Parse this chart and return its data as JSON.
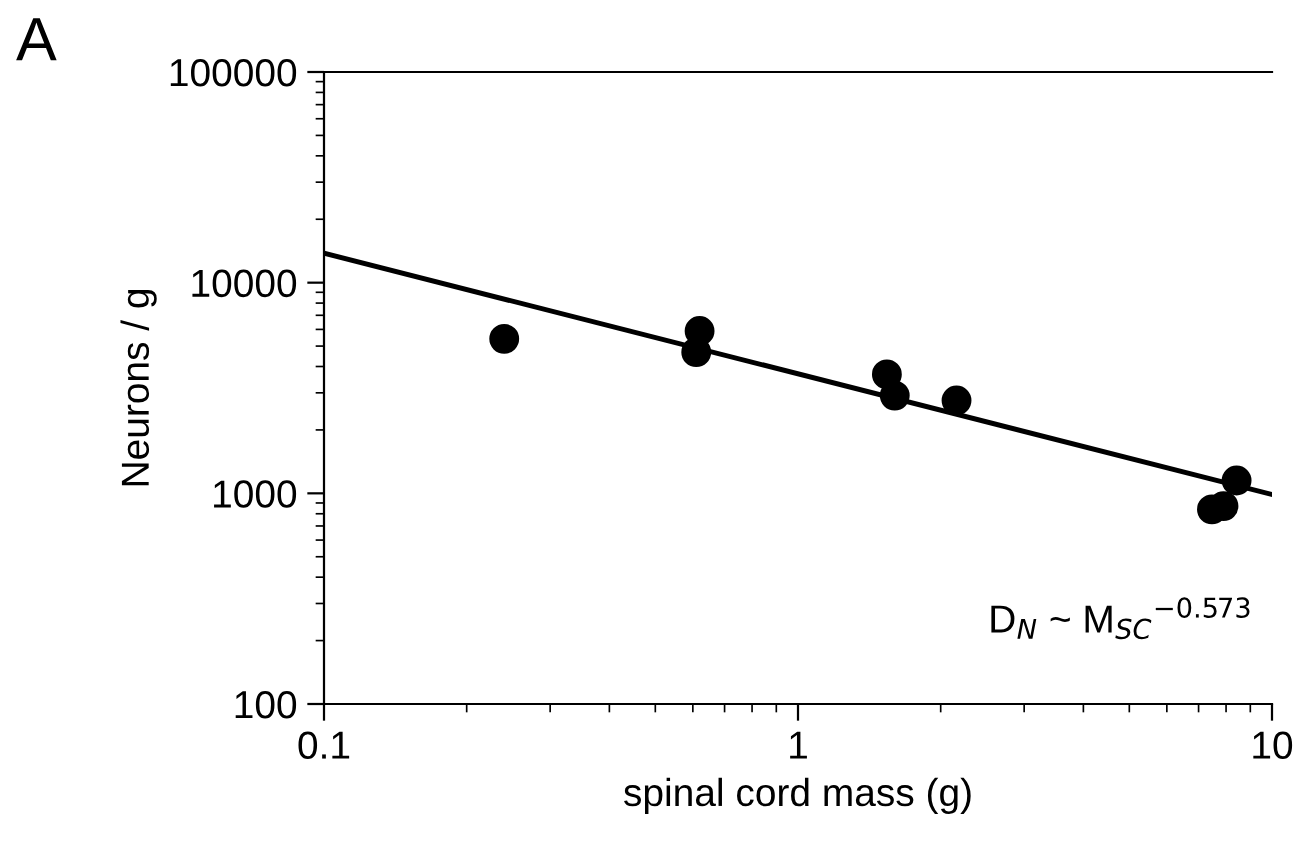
{
  "chart_data": {
    "type": "scatter",
    "xlabel": "spinal cord mass (g)",
    "ylabel": "Neurons / g",
    "log": "xy",
    "xlim": [
      0.1,
      10
    ],
    "ylim": [
      100,
      100000
    ],
    "xticks": [
      0.1,
      1,
      10
    ],
    "yticks": [
      100,
      1000,
      10000,
      100000
    ],
    "grid": false,
    "legend": false,
    "series": [
      {
        "marker": "circle",
        "color": "#000000",
        "x": [
          0.24,
          0.62,
          0.61,
          1.54,
          1.6,
          2.16,
          7.47,
          7.9,
          8.42
        ],
        "values": [
          5410,
          5900,
          4680,
          3670,
          2910,
          2760,
          839,
          870,
          1150
        ]
      },
      {
        "type": "line",
        "marker": "none",
        "color": "#000000",
        "x": [
          0.1,
          10
        ],
        "values": [
          13800,
          987
        ]
      }
    ],
    "annotations": [
      "A",
      "D$_{N}$ ~ M$_{SC}$$^{−0.573}$"
    ]
  }
}
